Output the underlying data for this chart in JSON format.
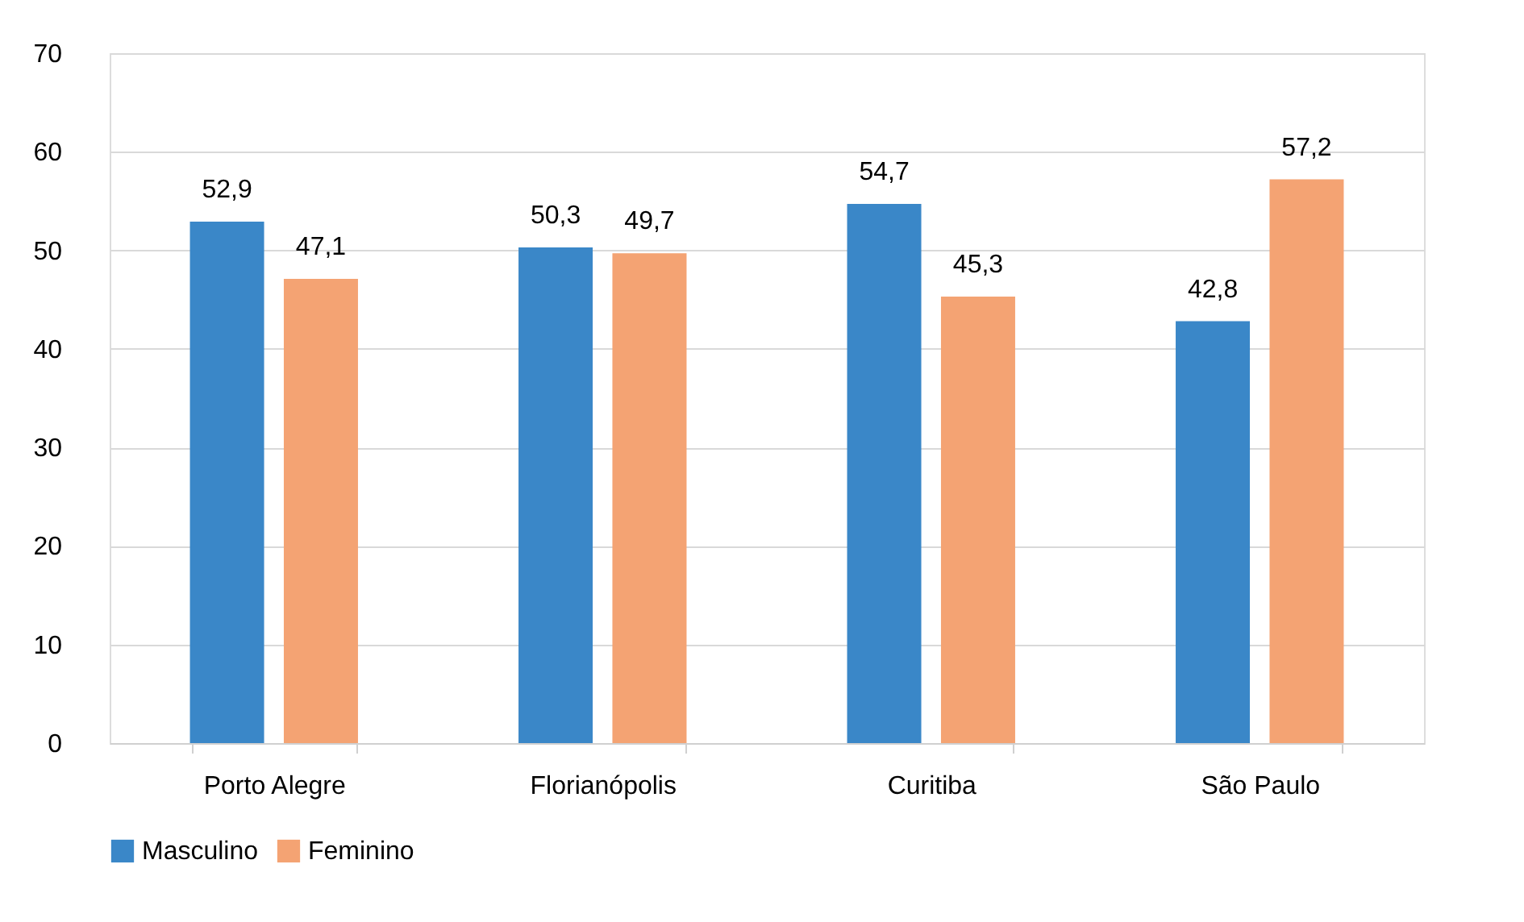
{
  "chart_data": {
    "type": "bar",
    "categories": [
      "Porto Alegre",
      "Florianópolis",
      "Curitiba",
      "São Paulo"
    ],
    "series": [
      {
        "name": "Masculino",
        "color": "#3a87c8",
        "values": [
          52.9,
          50.3,
          54.7,
          42.8
        ],
        "value_labels": [
          "52,9",
          "50,3",
          "54,7",
          "42,8"
        ]
      },
      {
        "name": "Feminino",
        "color": "#f4a373",
        "values": [
          47.1,
          49.7,
          45.3,
          57.2
        ],
        "value_labels": [
          "47,1",
          "49,7",
          "45,3",
          "57,2"
        ]
      }
    ],
    "ylim": [
      0,
      70
    ],
    "yticks": [
      0,
      10,
      20,
      30,
      40,
      50,
      60,
      70
    ],
    "grid": "y",
    "legend": "bottom"
  }
}
